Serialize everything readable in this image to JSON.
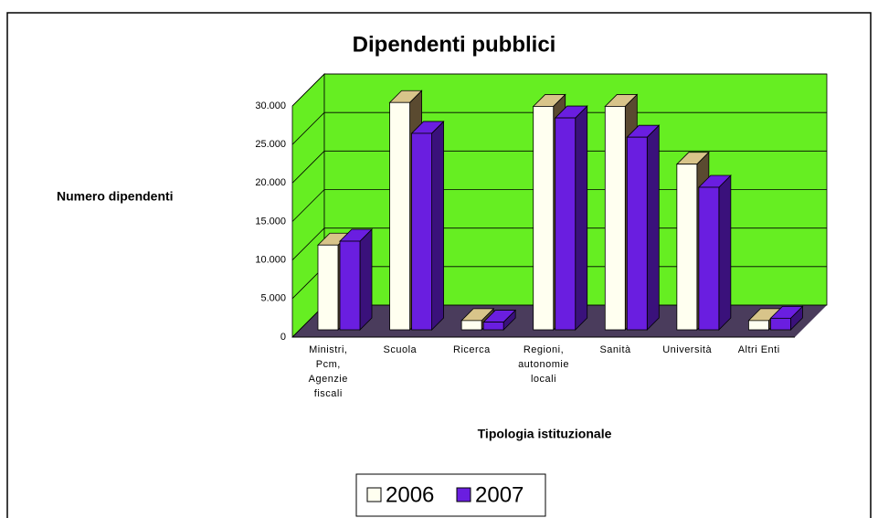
{
  "chart_data": {
    "type": "bar3d",
    "title": "Dipendenti pubblici",
    "y_label": "Numero dipendenti",
    "x_label": "Tipologia istituzionale",
    "categories": [
      "Ministri, Pcm, Agenzie fiscali",
      "Scuola",
      "Ricerca",
      "Regioni, autonomie locali",
      "Sanità",
      "Università",
      "Altri Enti"
    ],
    "series": [
      {
        "name": "2006",
        "color": "#fffff0",
        "values": [
          11000,
          29500,
          1200,
          29000,
          29000,
          21500,
          1200
        ]
      },
      {
        "name": "2007",
        "color": "#6a1ee0",
        "values": [
          11500,
          25500,
          1000,
          27500,
          25000,
          18500,
          1500
        ]
      }
    ],
    "ylim": [
      0,
      30000
    ],
    "yticks": [
      0,
      {
        "value": 5000,
        "label": "5.000"
      },
      {
        "value": 10000,
        "label": "10.000"
      },
      {
        "value": 15000,
        "label": "15.000"
      },
      {
        "value": 20000,
        "label": "20.000"
      },
      {
        "value": 25000,
        "label": "25.000"
      },
      {
        "value": 30000,
        "label": "30.000"
      }
    ],
    "grid": true,
    "wall_color": "#66ee22",
    "floor_color": "#4a3c5c",
    "legend": "bottom"
  }
}
